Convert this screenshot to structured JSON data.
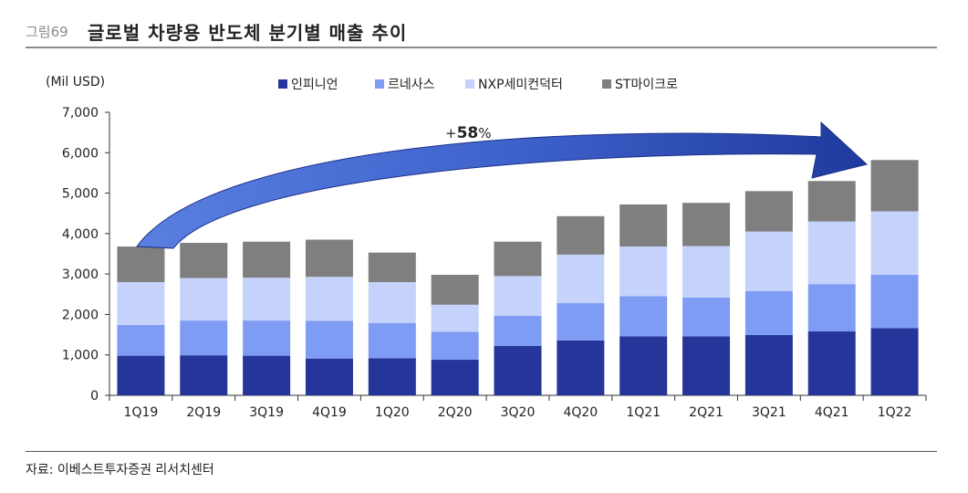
{
  "header": {
    "figure_no": "그림69",
    "title": "글로벌 차량용 반도체 분기별 매출 추이"
  },
  "source": "자료: 이베스트투자증권 리서치센터",
  "chart_data": {
    "type": "bar",
    "stacked": true,
    "title": "글로벌 차량용 반도체 분기별 매출 추이",
    "unit_label": "(Mil USD)",
    "categories": [
      "1Q19",
      "2Q19",
      "3Q19",
      "4Q19",
      "1Q20",
      "2Q20",
      "3Q20",
      "4Q20",
      "1Q21",
      "2Q21",
      "3Q21",
      "4Q21",
      "1Q22"
    ],
    "series": [
      {
        "name": "인피니언",
        "color": "#26359a",
        "values": [
          980,
          990,
          980,
          910,
          920,
          880,
          1220,
          1360,
          1460,
          1460,
          1490,
          1580,
          1660
        ]
      },
      {
        "name": "르네사스",
        "color": "#7f9cf4",
        "values": [
          760,
          860,
          870,
          930,
          870,
          690,
          750,
          920,
          990,
          960,
          1090,
          1170,
          1320
        ]
      },
      {
        "name": "NXP세미컨덕터",
        "color": "#c5d2fb",
        "values": [
          1060,
          1050,
          1060,
          1090,
          1010,
          670,
          980,
          1200,
          1230,
          1270,
          1470,
          1550,
          1570
        ]
      },
      {
        "name": "ST마이크로",
        "color": "#7f7f7f",
        "values": [
          880,
          870,
          890,
          920,
          730,
          740,
          850,
          950,
          1040,
          1070,
          1000,
          1000,
          1270
        ]
      }
    ],
    "ylim": [
      0,
      7000
    ],
    "yticks": [
      0,
      1000,
      2000,
      3000,
      4000,
      5000,
      6000,
      7000
    ],
    "ytick_labels": [
      "0",
      "1,000",
      "2,000",
      "3,000",
      "4,000",
      "5,000",
      "6,000",
      "7,000"
    ],
    "legend_position": "top",
    "annotation": {
      "text_prefix": "+",
      "text_value": "58",
      "text_suffix": "%",
      "from": "1Q19",
      "to": "1Q22",
      "color": "#4a6fd6"
    },
    "grid": false
  }
}
